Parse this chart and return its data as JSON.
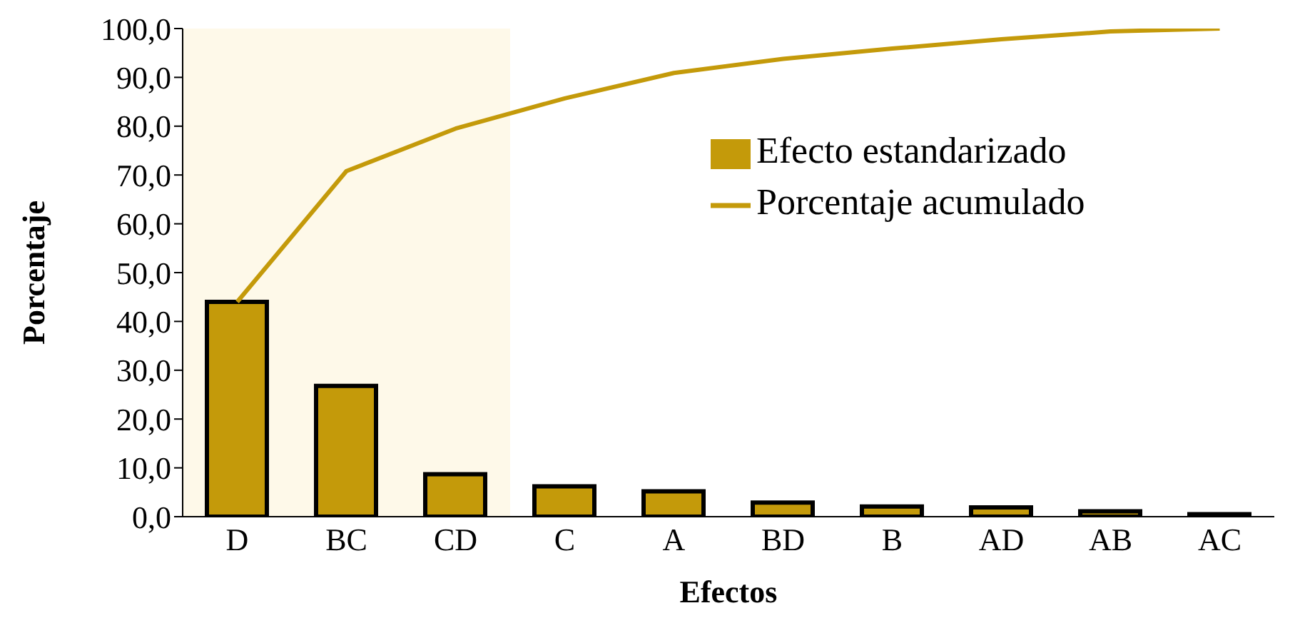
{
  "chart_data": {
    "type": "bar",
    "xlabel": "Efectos",
    "ylabel": "Porcentaje",
    "categories": [
      "D",
      "BC",
      "CD",
      "C",
      "A",
      "BD",
      "B",
      "AD",
      "AB",
      "AC"
    ],
    "series": [
      {
        "name": "Efecto estandarizado",
        "color": "#c49a0a",
        "values": [
          44.0,
          26.8,
          8.7,
          6.2,
          5.2,
          2.9,
          2.1,
          1.9,
          1.1,
          0.5
        ]
      },
      {
        "name": "Porcentaje acumulado",
        "type": "line",
        "color": "#c49a0a",
        "values": [
          44.0,
          70.8,
          79.5,
          85.7,
          90.9,
          93.8,
          95.9,
          97.8,
          99.4,
          100.0
        ]
      }
    ],
    "ylim": [
      0,
      100
    ],
    "yticks": [
      {
        "value": 0,
        "label": "0,0"
      },
      {
        "value": 10,
        "label": "10,0"
      },
      {
        "value": 20,
        "label": "20,0"
      },
      {
        "value": 30,
        "label": "30,0"
      },
      {
        "value": 40,
        "label": "40,0"
      },
      {
        "value": 50,
        "label": "50,0"
      },
      {
        "value": 60,
        "label": "60,0"
      },
      {
        "value": 70,
        "label": "70,0"
      },
      {
        "value": 80,
        "label": "80,0"
      },
      {
        "value": 90,
        "label": "90,0"
      },
      {
        "value": 100,
        "label": "100,0"
      }
    ],
    "bands": [
      {
        "axis": "x",
        "from": "D",
        "to": "CD",
        "color": "#fdf1cf"
      }
    ],
    "grid": false,
    "legend": "top right",
    "marker": "none",
    "line_style": "solid"
  }
}
